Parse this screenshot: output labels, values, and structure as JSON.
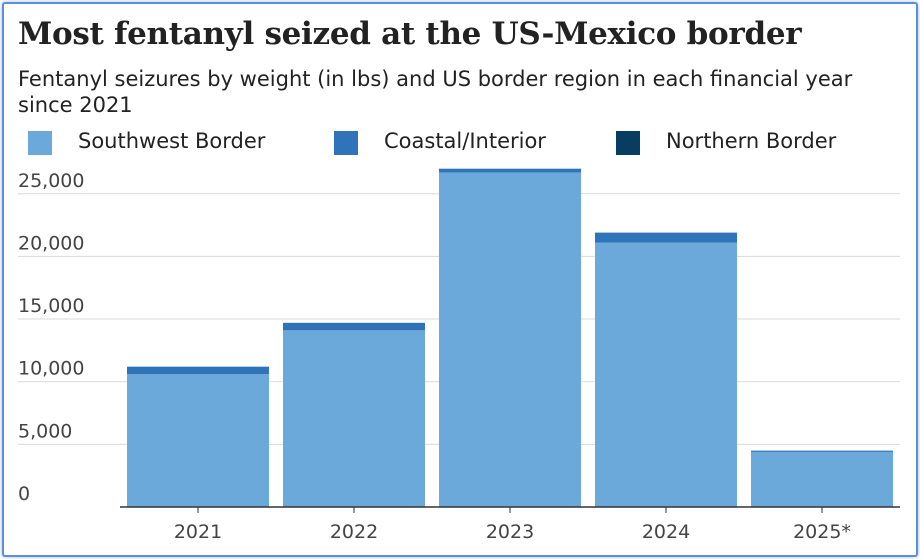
{
  "chart_data": {
    "type": "bar",
    "stacked": true,
    "title": "Most fentanyl seized at the US-Mexico border",
    "subtitle": "Fentanyl seizures by weight (in lbs) and US border region in each financial year since 2021",
    "categories": [
      "2021",
      "2022",
      "2023",
      "2024",
      "2025*"
    ],
    "series": [
      {
        "name": "Southwest Border",
        "color": "#6aa9d9",
        "values": [
          10600,
          14100,
          26700,
          21100,
          4400
        ]
      },
      {
        "name": "Coastal/Interior",
        "color": "#2f73b8",
        "values": [
          600,
          600,
          300,
          800,
          100
        ]
      },
      {
        "name": "Northern Border",
        "color": "#083d62",
        "values": [
          0,
          0,
          0,
          0,
          0
        ]
      }
    ],
    "y_ticks": [
      "0",
      "5,000",
      "10,000",
      "15,000",
      "20,000",
      "25,000"
    ],
    "ylim": [
      0,
      27500
    ],
    "xlabel": "",
    "ylabel": "",
    "grid": true,
    "legend_position": "top"
  }
}
